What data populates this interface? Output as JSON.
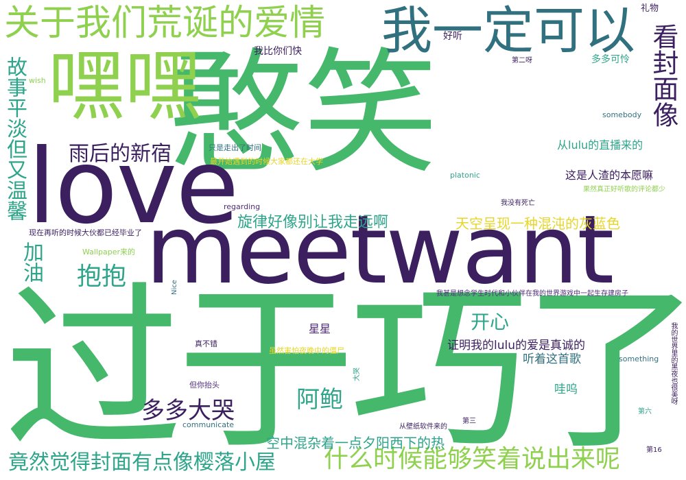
{
  "words": {
    "w_handxiao": "憨笑",
    "w_guoyuqiaole": "过于巧了",
    "w_meetwant": "meetwant",
    "w_love": "love",
    "w_heihei": "嘿嘿",
    "w_guanyu": "关于我们荒诞的爱情",
    "w_woyiding": "我一定可以",
    "w_kanfengmian": "看封面像",
    "w_gushi": "故事平淡但又温馨",
    "w_jiayou": "加油",
    "w_baobao": "抱抱",
    "w_yuhou": "雨后的新宿",
    "w_xuanlv": "旋律好像别让我走远啊",
    "w_tiankong": "天空呈现一种混沌的灰蓝色",
    "w_kaixin": "开心",
    "w_abao": "阿鲍",
    "w_duoduodaku": "多多大哭",
    "w_shenme": "什么时候能够笑着说出来呢",
    "w_jingran": "竟然觉得封面有点像樱落小屋",
    "w_kongzhong": "空中混杂着一点夕阳西下的热",
    "w_zhengming": "证明我的lulu的爱是真诚的",
    "w_tingzhe": "听着这首歌",
    "w_wawu": "哇呜",
    "w_xingxing": "星星",
    "w_conglulu": "从lulu的直播来的",
    "w_zheshi": "这是人渣的本愿嘛",
    "w_duoduokelian": "多多可怜",
    "w_liwu": "礼物",
    "w_haoting": "好听",
    "w_wobini": "我比你们快",
    "w_dierya": "第二呀",
    "w_wish": "wish",
    "w_somebody": "somebody",
    "w_zhishi": "只是走出了时间",
    "w_zuikaishi": "最开始遇到的时候大家都还在大学",
    "w_platonic": "platonic",
    "w_guoran": "果然真正好听歌的评论都少",
    "w_regarding": "regarding",
    "w_womeiyou": "我没有死亡",
    "w_xianzai": "现在再听的时候大伙都已经毕业了",
    "w_wallpaper": "Wallpaper来的",
    "w_nice": "Nice",
    "w_woshen": "我甚是想念学生时代和小伙伴在我的世界游戏中一起生存建房子",
    "w_zhenbucuo": "真不错",
    "w_suiran": "虽然害怕夜晚中的僵尸",
    "w_something": "something",
    "w_wode": "我的世界里的黑夜也很美呀",
    "w_daku": "大哭",
    "w_danni": "但你抬头",
    "w_communicate": "communicate",
    "w_bizhi": "从壁纸软件来的",
    "w_disan": "第三",
    "w_diliu": "第六",
    "w_di16": "第16"
  }
}
